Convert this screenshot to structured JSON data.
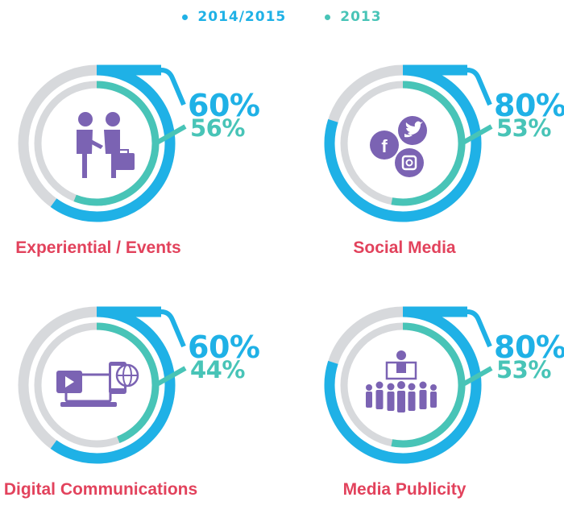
{
  "colors": {
    "series_2014_2015": "#1fb1e6",
    "series_2013": "#48c4b7",
    "track": "#d7d9dc",
    "icon": "#7b63b3",
    "label": "#e2425c"
  },
  "legend": {
    "items": [
      {
        "label": "2014/2015",
        "color": "#1fb1e6"
      },
      {
        "label": "2013",
        "color": "#48c4b7"
      }
    ]
  },
  "chart_data": {
    "type": "radial-bar",
    "series_names": [
      "2014/2015",
      "2013"
    ],
    "unit": "%",
    "panels": [
      {
        "category": "Experiential / Events",
        "icon": "handshake-icon",
        "values": [
          60,
          56
        ],
        "value_labels": [
          "60%",
          "56%"
        ]
      },
      {
        "category": "Social Media",
        "icon": "social-icons",
        "values": [
          80,
          53
        ],
        "value_labels": [
          "80%",
          "53%"
        ]
      },
      {
        "category": "Digital Communications",
        "icon": "devices-icon",
        "values": [
          60,
          44
        ],
        "value_labels": [
          "60%",
          "44%"
        ]
      },
      {
        "category": "Media Publicity",
        "icon": "audience-icon",
        "values": [
          80,
          53
        ],
        "value_labels": [
          "80%",
          "53%"
        ]
      }
    ]
  }
}
